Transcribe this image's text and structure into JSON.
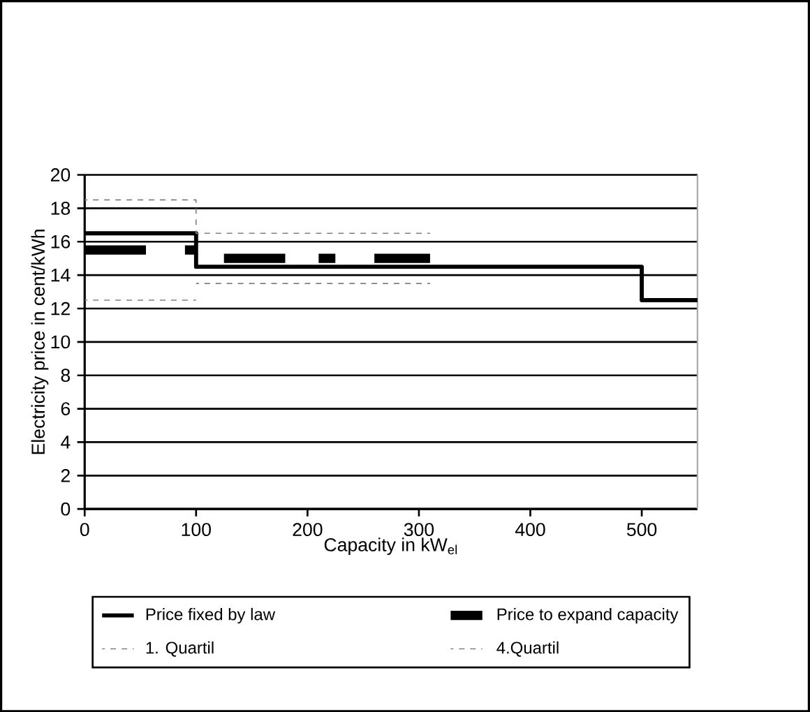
{
  "chart_data": {
    "type": "line",
    "xlabel": "Capacity in kW$_{el}$",
    "ylabel": "Electricity price in cent/kWh",
    "xlim": [
      0,
      550
    ],
    "xticks": [
      0,
      100,
      200,
      300,
      400,
      500
    ],
    "ylim": [
      0,
      20
    ],
    "yticks": [
      0,
      2,
      4,
      6,
      8,
      10,
      12,
      14,
      16,
      18,
      20
    ],
    "grid": "y",
    "legend": "bottom",
    "marker": "none",
    "series": [
      {
        "name": "Price fixed by law",
        "color": "#000000",
        "line_style": "solid",
        "x": [
          0,
          100,
          100,
          500,
          500,
          550
        ],
        "values": [
          16.5,
          16.5,
          14.5,
          14.5,
          12.5,
          12.5
        ]
      },
      {
        "name": "Price to expand capacity",
        "color": "#000000",
        "line_style": "solid",
        "x": [
          0,
          55,
          null,
          90,
          100,
          null,
          125,
          180,
          null,
          210,
          225,
          null,
          260,
          310
        ],
        "values": [
          15.5,
          15.5,
          null,
          15.5,
          15.5,
          null,
          15,
          15,
          null,
          15,
          15,
          null,
          15,
          15
        ]
      },
      {
        "name": "1. Quartil",
        "color": "#808080",
        "line_style": "dashed",
        "x": [
          0,
          100,
          null,
          100,
          310
        ],
        "values": [
          12.5,
          12.5,
          null,
          13.5,
          13.5
        ]
      },
      {
        "name": "4.Quartil",
        "color": "#808080",
        "line_style": "dashed",
        "x": [
          0,
          100,
          100,
          310
        ],
        "values": [
          18.5,
          18.5,
          16.5,
          16.5
        ]
      }
    ]
  }
}
